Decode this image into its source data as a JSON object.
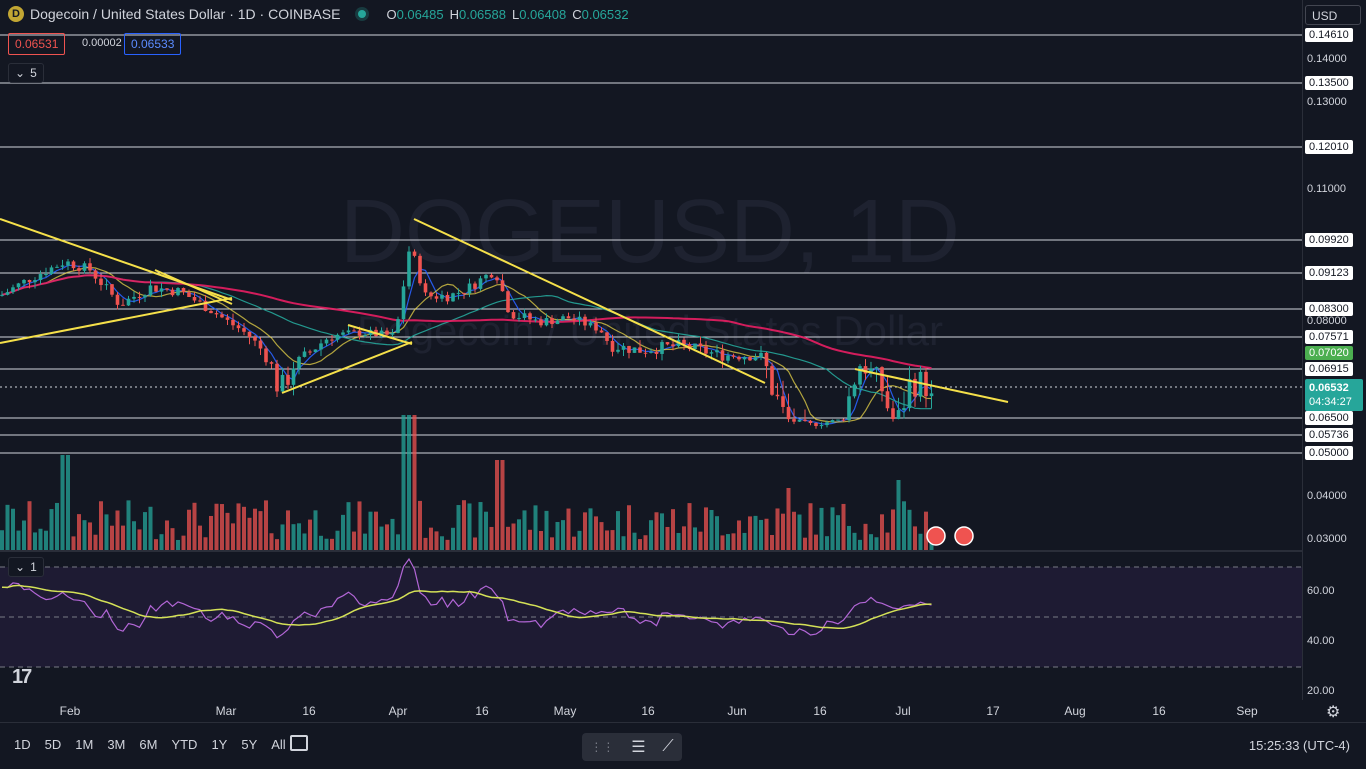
{
  "header": {
    "symbol_title": "Dogecoin / United States Dollar · 1D · COINBASE",
    "open_key": "O",
    "open": "0.06485",
    "high_key": "H",
    "high": "0.06588",
    "low_key": "L",
    "low": "0.06408",
    "close_key": "C",
    "close": "0.06532",
    "bid": "0.06531",
    "spread": "0.00002",
    "ask": "0.06533",
    "indicator_count": "5",
    "rsi_count": "1"
  },
  "watermark": {
    "line1": "DOGEUSD, 1D",
    "line2": "Dogecoin / United States Dollar"
  },
  "price_axis": {
    "currency": "USD",
    "ticks": [
      "0.14000",
      "0.13000",
      "0.11000",
      "0.08000",
      "0.04000",
      "0.03000"
    ],
    "levels": [
      "0.14610",
      "0.13500",
      "0.12010",
      "0.09920",
      "0.09123",
      "0.08300",
      "0.07571",
      "0.06915",
      "0.06500",
      "0.05736",
      "0.05000"
    ],
    "ma_label": "0.07020",
    "last_price": "0.06532",
    "countdown": "04:34:27"
  },
  "rsi_axis": {
    "ticks": [
      "60.00",
      "40.00",
      "20.00"
    ]
  },
  "time_axis": {
    "labels": [
      "Feb",
      "Mar",
      "16",
      "Apr",
      "16",
      "May",
      "16",
      "Jun",
      "16",
      "Jul",
      "17",
      "Aug",
      "16",
      "Sep"
    ]
  },
  "bottom_bar": {
    "timeframes": [
      "1D",
      "5D",
      "1M",
      "3M",
      "6M",
      "YTD",
      "1Y",
      "5Y",
      "All"
    ],
    "clock": "15:25:33 (UTC-4)"
  },
  "colors": {
    "background": "#131722",
    "up": "#26a69a",
    "down": "#ef5350",
    "trendline": "#f5e04a",
    "ma_long": "#e91e63",
    "ma_mid": "#26a69a",
    "ma_fast": "#2962ff",
    "rsi": "#b266d6",
    "rsi_ma": "#d4e157"
  },
  "chart_data": {
    "type": "candlestick",
    "x_labels": [
      "Feb",
      "Mar",
      "16",
      "Apr",
      "16",
      "May",
      "16",
      "Jun",
      "16",
      "Jul",
      "17",
      "Aug",
      "16",
      "Sep"
    ],
    "y_range": [
      0.03,
      0.15
    ],
    "last_close": 0.06532,
    "horizontal_levels": [
      0.1461,
      0.135,
      0.1201,
      0.0992,
      0.09123,
      0.083,
      0.07571,
      0.06915,
      0.065,
      0.05736,
      0.05
    ],
    "rsi_range": [
      20,
      70
    ],
    "rsi_reference_lines": [
      70,
      50,
      30
    ]
  }
}
